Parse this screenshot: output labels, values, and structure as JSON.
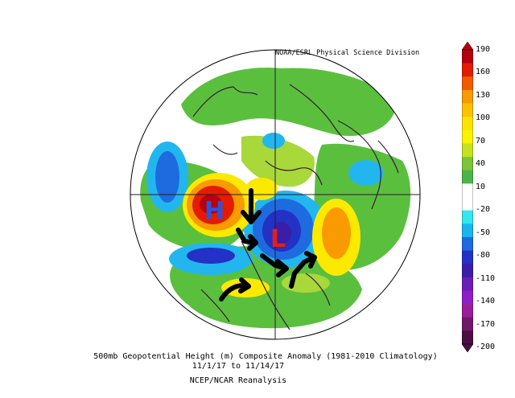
{
  "header": {
    "credit": "NOAA/ESRL Physical Science Division"
  },
  "caption": {
    "line1": "500mb Geopotential Height (m) Composite Anomaly (1981-2010 Climatology)",
    "line2": "11/1/17  to 11/14/17",
    "line3": "NCEP/NCAR Reanalysis"
  },
  "colorbar": {
    "ticks": [
      "190",
      "160",
      "130",
      "100",
      "70",
      "40",
      "10",
      "-20",
      "-50",
      "-80",
      "-110",
      "-140",
      "-170",
      "-200"
    ],
    "colors": [
      "#b5000f",
      "#e51b00",
      "#f35a00",
      "#f99a00",
      "#fbc200",
      "#fde400",
      "#fbf300",
      "#c6e21e",
      "#7cc43a",
      "#4cb548",
      "#ffffff",
      "#ffffff",
      "#33e6ef",
      "#1cb6ee",
      "#1e6be0",
      "#2331c4",
      "#3b1ea8",
      "#6b1db7",
      "#8e1fc6",
      "#9a1d9a",
      "#711866",
      "#4b0f43"
    ]
  },
  "annotations": {
    "high_label": "H",
    "low_label": "L"
  },
  "colors": {
    "high": "#2a55e0",
    "low": "#e22018",
    "arrows": "#000000",
    "coastlines": "#3a1a3a"
  }
}
